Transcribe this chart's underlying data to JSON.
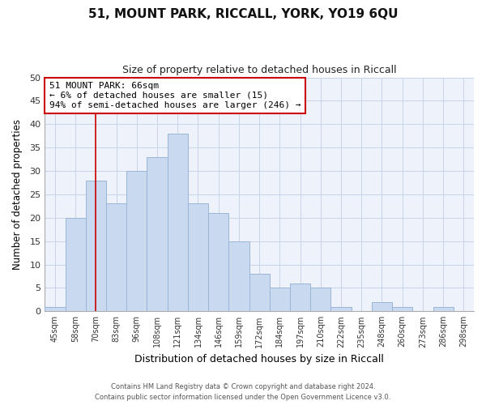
{
  "title": "51, MOUNT PARK, RICCALL, YORK, YO19 6QU",
  "subtitle": "Size of property relative to detached houses in Riccall",
  "xlabel": "Distribution of detached houses by size in Riccall",
  "ylabel": "Number of detached properties",
  "bar_labels": [
    "45sqm",
    "58sqm",
    "70sqm",
    "83sqm",
    "96sqm",
    "108sqm",
    "121sqm",
    "134sqm",
    "146sqm",
    "159sqm",
    "172sqm",
    "184sqm",
    "197sqm",
    "210sqm",
    "222sqm",
    "235sqm",
    "248sqm",
    "260sqm",
    "273sqm",
    "286sqm",
    "298sqm"
  ],
  "bar_values": [
    1,
    20,
    28,
    23,
    30,
    33,
    38,
    23,
    21,
    15,
    8,
    5,
    6,
    5,
    1,
    0,
    2,
    1,
    0,
    1,
    0
  ],
  "bar_color": "#c9daf0",
  "bar_edge_color": "#9ab5d8",
  "grid_color": "#c8d4e8",
  "background_color": "#ffffff",
  "plot_bg_color": "#eef2fa",
  "vline_x_index": 2,
  "vline_color": "#cc0000",
  "annotation_line1": "51 MOUNT PARK: 66sqm",
  "annotation_line2": "← 6% of detached houses are smaller (15)",
  "annotation_line3": "94% of semi-detached houses are larger (246) →",
  "annotation_box_color": "#ffffff",
  "annotation_box_edge": "#cc0000",
  "ylim": [
    0,
    50
  ],
  "yticks": [
    0,
    5,
    10,
    15,
    20,
    25,
    30,
    35,
    40,
    45,
    50
  ],
  "footer1": "Contains HM Land Registry data © Crown copyright and database right 2024.",
  "footer2": "Contains public sector information licensed under the Open Government Licence v3.0."
}
